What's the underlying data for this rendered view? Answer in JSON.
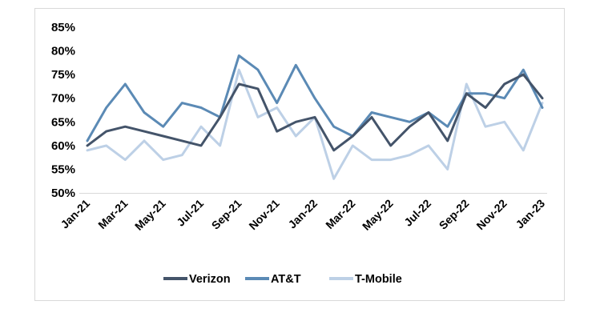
{
  "chart_data": {
    "type": "line",
    "title": "",
    "xlabel": "",
    "ylabel": "",
    "ylim": [
      50,
      85
    ],
    "yticks": [
      "50%",
      "55%",
      "60%",
      "65%",
      "70%",
      "75%",
      "80%",
      "85%"
    ],
    "categories": [
      "Jan-21",
      "Feb-21",
      "Mar-21",
      "Apr-21",
      "May-21",
      "Jun-21",
      "Jul-21",
      "Aug-21",
      "Sep-21",
      "Oct-21",
      "Nov-21",
      "Dec-21",
      "Jan-22",
      "Feb-22",
      "Mar-22",
      "Apr-22",
      "May-22",
      "Jun-22",
      "Jul-22",
      "Aug-22",
      "Sep-22",
      "Oct-22",
      "Nov-22",
      "Dec-22",
      "Jan-23"
    ],
    "xtick_labels": [
      "Jan-21",
      "Mar-21",
      "May-21",
      "Jul-21",
      "Sep-21",
      "Nov-21",
      "Jan-22",
      "Mar-22",
      "May-22",
      "Jul-22",
      "Sep-22",
      "Nov-22",
      "Jan-23"
    ],
    "legend_position": "bottom",
    "series": [
      {
        "name": "Verizon",
        "color": "#44546a",
        "values": [
          60,
          63,
          64,
          63,
          62,
          61,
          60,
          66,
          73,
          72,
          63,
          65,
          66,
          59,
          62,
          66,
          60,
          64,
          67,
          61,
          71,
          68,
          73,
          75,
          70
        ]
      },
      {
        "name": "AT&T",
        "color": "#5b8ab5",
        "values": [
          61,
          68,
          73,
          67,
          64,
          69,
          68,
          66,
          79,
          76,
          69,
          77,
          70,
          64,
          62,
          67,
          66,
          65,
          67,
          64,
          71,
          71,
          70,
          76,
          68
        ]
      },
      {
        "name": "T-Mobile",
        "color": "#bdd0e6",
        "values": [
          59,
          60,
          57,
          61,
          57,
          58,
          64,
          60,
          76,
          66,
          68,
          62,
          66,
          53,
          60,
          57,
          57,
          58,
          60,
          55,
          73,
          64,
          65,
          59,
          69
        ]
      }
    ]
  }
}
